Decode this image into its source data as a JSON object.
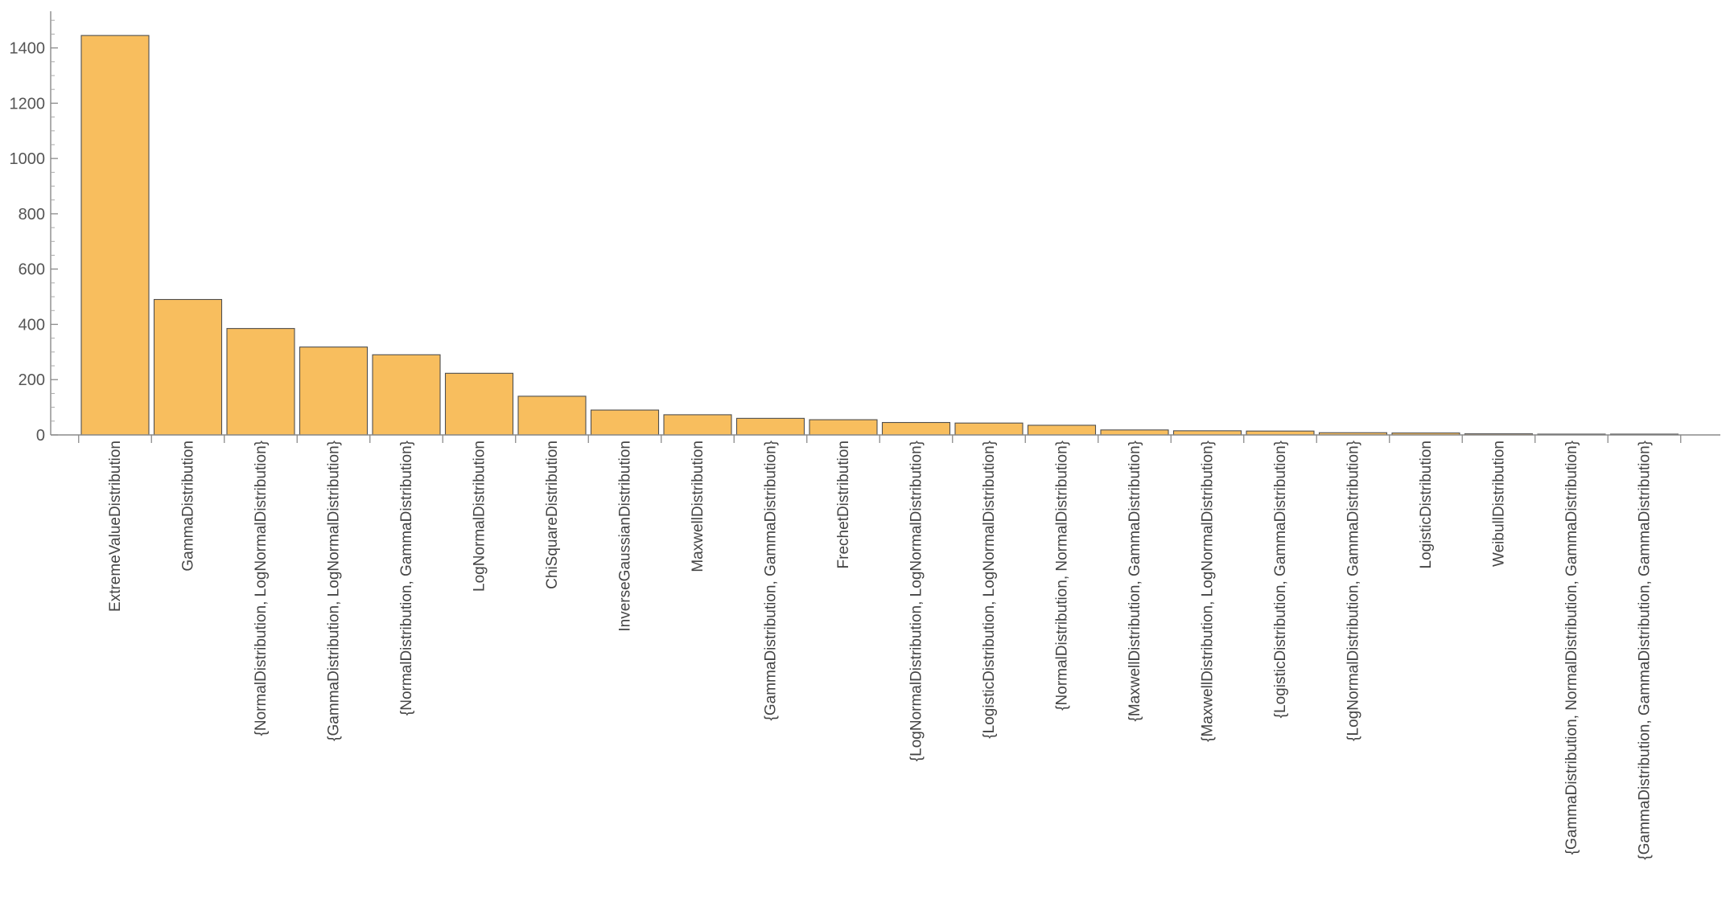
{
  "chart_data": {
    "type": "bar",
    "categories": [
      "ExtremeValueDistribution",
      "GammaDistribution",
      "{NormalDistribution, LogNormalDistribution}",
      "{GammaDistribution, LogNormalDistribution}",
      "{NormalDistribution, GammaDistribution}",
      "LogNormalDistribution",
      "ChiSquareDistribution",
      "InverseGaussianDistribution",
      "MaxwellDistribution",
      "{GammaDistribution, GammaDistribution}",
      "FrechetDistribution",
      "{LogNormalDistribution, LogNormalDistribution}",
      "{LogisticDistribution, LogNormalDistribution}",
      "{NormalDistribution, NormalDistribution}",
      "{MaxwellDistribution, GammaDistribution}",
      "{MaxwellDistribution, LogNormalDistribution}",
      "{LogisticDistribution, GammaDistribution}",
      "{LogNormalDistribution, GammaDistribution}",
      "LogisticDistribution",
      "WeibullDistribution",
      "{GammaDistribution, NormalDistribution, GammaDistribution}",
      "{GammaDistribution, GammaDistribution, GammaDistribution}"
    ],
    "values": [
      1445,
      490,
      385,
      318,
      290,
      223,
      140,
      90,
      73,
      60,
      55,
      45,
      43,
      35,
      18,
      15,
      14,
      8,
      7,
      4,
      2,
      1
    ],
    "title": "",
    "xlabel": "",
    "ylabel": "",
    "ylim": [
      0,
      1500
    ],
    "yticks": [
      0,
      200,
      400,
      600,
      800,
      1000,
      1200,
      1400
    ],
    "bar_color": "#F8BE5E",
    "bar_edge_color": "#4F4F4F",
    "axis_color": "#8A8A8A",
    "grid": false,
    "legend": "none"
  }
}
